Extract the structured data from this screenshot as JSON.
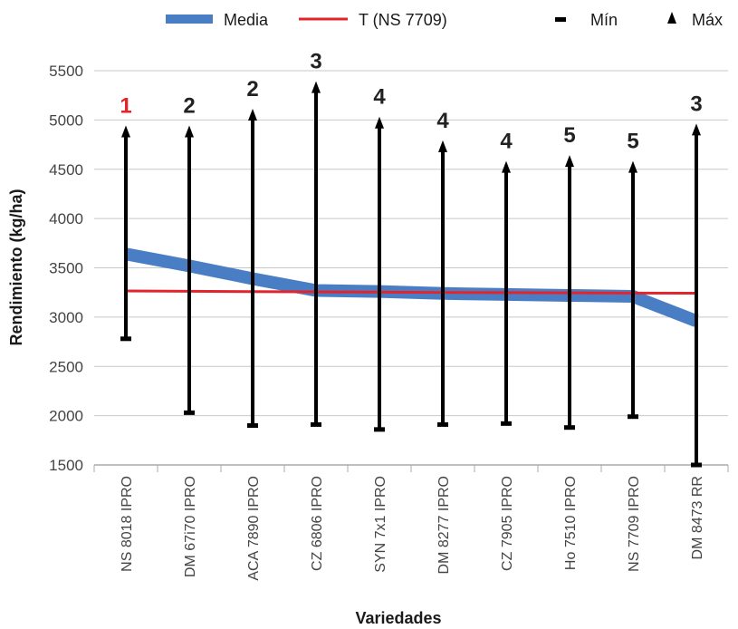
{
  "chart_data": {
    "type": "line",
    "ylabel": "Rendimiento (kg/ha)",
    "xlabel": "Variedades",
    "ylim": [
      1500,
      5500
    ],
    "yticks": [
      1500,
      2000,
      2500,
      3000,
      3500,
      4000,
      4500,
      5000,
      5500
    ],
    "grid": true,
    "legend_position": "top",
    "categories": [
      "NS 8018 IPRO",
      "DM 67i70 IPRO",
      "ACA 7890 IPRO",
      "CZ 6806 IPRO",
      "SYN 7x1 IPRO",
      "DM 8277 IPRO",
      "CZ 7905 IPRO",
      "Ho 7510 IPRO",
      "NS 7709 IPRO",
      "DM 8473 RR"
    ],
    "series": [
      {
        "name": "Media",
        "type": "line",
        "color": "#4a7ec4",
        "values": [
          3640,
          3520,
          3390,
          3270,
          3260,
          3240,
          3230,
          3220,
          3210,
          2960
        ]
      },
      {
        "name": "T (NS 7709)",
        "type": "line",
        "color": "#e3242b",
        "values": [
          3265,
          3262,
          3259,
          3256,
          3253,
          3250,
          3248,
          3246,
          3244,
          3242
        ]
      },
      {
        "name": "Mín",
        "type": "marker",
        "color": "#000000",
        "values": [
          2780,
          2030,
          1900,
          1910,
          1860,
          1910,
          1920,
          1880,
          1990,
          1500
        ]
      },
      {
        "name": "Máx",
        "type": "marker",
        "color": "#000000",
        "values": [
          4870,
          4870,
          5040,
          5320,
          4960,
          4720,
          4510,
          4570,
          4510,
          4890
        ]
      }
    ],
    "rank_labels": [
      "1",
      "2",
      "2",
      "3",
      "4",
      "4",
      "4",
      "5",
      "5",
      "3"
    ],
    "rank_colors": [
      "#e3242b",
      "#222222",
      "#222222",
      "#222222",
      "#222222",
      "#222222",
      "#222222",
      "#222222",
      "#222222",
      "#222222"
    ],
    "grid_color": "#c8c8c8"
  }
}
